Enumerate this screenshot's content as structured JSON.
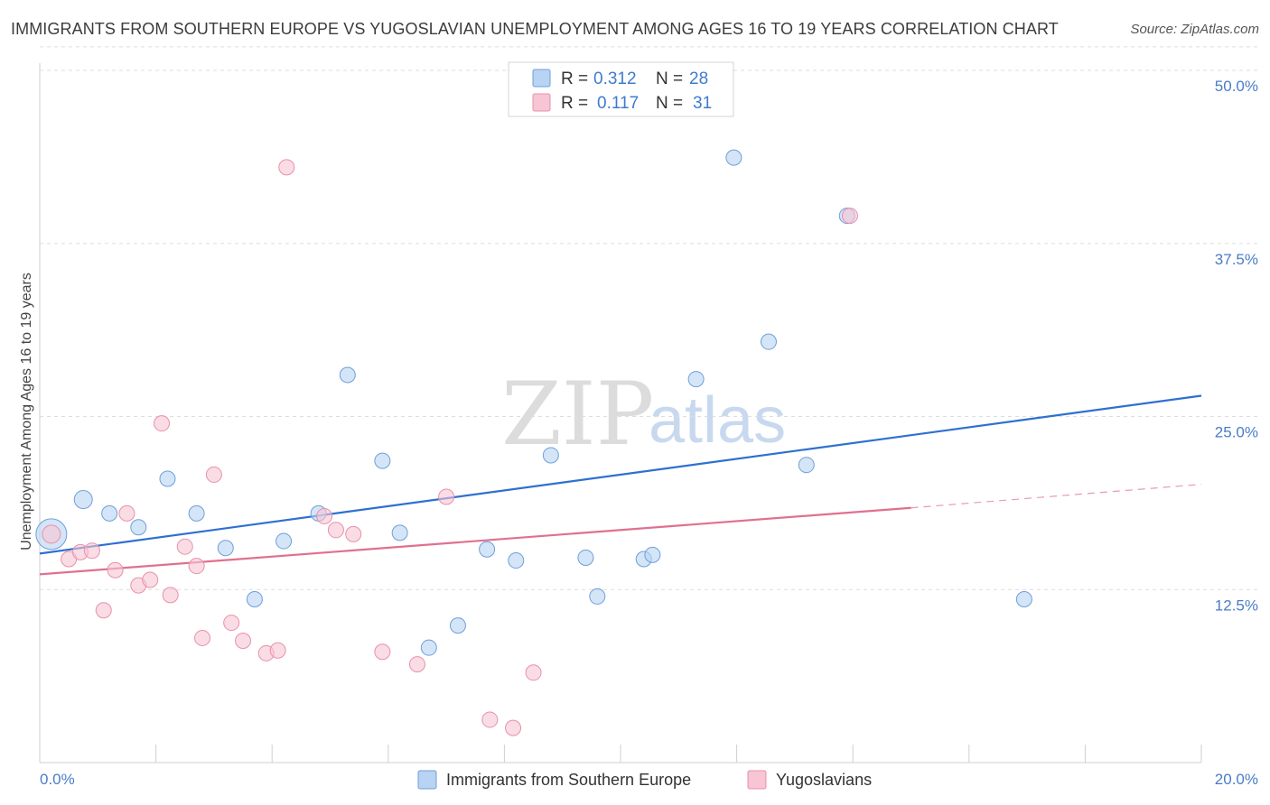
{
  "header": {
    "title": "IMMIGRANTS FROM SOUTHERN EUROPE VS YUGOSLAVIAN UNEMPLOYMENT AMONG AGES 16 TO 19 YEARS CORRELATION CHART",
    "source": "Source: ZipAtlas.com"
  },
  "watermark": {
    "zip": "ZIP",
    "atlas": "atlas"
  },
  "legend": {
    "series1": {
      "r_label": "R = ",
      "r_value": "0.312",
      "n_label": "N = ",
      "n_value": "28"
    },
    "series2": {
      "r_label": "R = ",
      "r_value": "0.117",
      "n_label": "N = ",
      "n_value": "31"
    }
  },
  "colors": {
    "blue_fill": "#b8d3f3",
    "blue_stroke": "#6f9fd8",
    "blue_line": "#2f6fd0",
    "pink_fill": "#f7c5d4",
    "pink_stroke": "#e890ac",
    "pink_line": "#e0708f",
    "axis_text": "#4a7cc9"
  },
  "chart_data": {
    "type": "scatter",
    "title": "IMMIGRANTS FROM SOUTHERN EUROPE VS YUGOSLAVIAN UNEMPLOYMENT AMONG AGES 16 TO 19 YEARS CORRELATION CHART",
    "xlabel": "",
    "ylabel": "Unemployment Among Ages 16 to 19 years",
    "xlim": [
      0,
      20
    ],
    "ylim": [
      0,
      52
    ],
    "x_tick_labels": [
      {
        "value": 0,
        "label": "0.0%"
      },
      {
        "value": 20,
        "label": "20.0%"
      }
    ],
    "y_tick_labels": [
      {
        "value": 12.5,
        "label": "12.5%"
      },
      {
        "value": 25,
        "label": "25.0%"
      },
      {
        "value": 37.5,
        "label": "37.5%"
      },
      {
        "value": 50,
        "label": "50.0%"
      }
    ],
    "series": [
      {
        "name": "Immigrants from Southern Europe",
        "color": "blue",
        "points": [
          [
            0.2,
            16.5,
            3
          ],
          [
            0.75,
            19,
            2
          ],
          [
            1.2,
            18,
            1
          ],
          [
            1.7,
            17,
            1
          ],
          [
            2.2,
            20.5,
            1
          ],
          [
            2.7,
            18,
            1
          ],
          [
            3.2,
            15.5,
            1
          ],
          [
            3.7,
            11.8,
            1
          ],
          [
            4.2,
            16,
            1
          ],
          [
            4.8,
            18,
            1
          ],
          [
            5.3,
            28,
            1
          ],
          [
            5.9,
            21.8,
            1
          ],
          [
            6.2,
            16.6,
            1
          ],
          [
            6.7,
            8.3,
            1
          ],
          [
            7.2,
            9.9,
            1
          ],
          [
            7.7,
            15.4,
            1
          ],
          [
            8.2,
            14.6,
            1
          ],
          [
            8.8,
            22.2,
            1
          ],
          [
            9.4,
            14.8,
            1
          ],
          [
            9.6,
            12,
            1
          ],
          [
            10.4,
            14.7,
            1
          ],
          [
            10.55,
            15,
            1
          ],
          [
            11.3,
            27.7,
            1
          ],
          [
            11.95,
            43.7,
            1
          ],
          [
            12.55,
            30.4,
            1
          ],
          [
            13.2,
            21.5,
            1
          ],
          [
            13.9,
            39.5,
            1
          ],
          [
            16.95,
            11.8,
            1
          ]
        ],
        "trend": {
          "x": [
            0,
            20
          ],
          "y": [
            15.1,
            26.5
          ]
        }
      },
      {
        "name": "Yugoslavians",
        "color": "pink",
        "points": [
          [
            0.2,
            16.5,
            2
          ],
          [
            0.5,
            14.7,
            1
          ],
          [
            0.7,
            15.2,
            1
          ],
          [
            0.9,
            15.3,
            1
          ],
          [
            1.1,
            11,
            1
          ],
          [
            1.3,
            13.9,
            1
          ],
          [
            1.5,
            18,
            1
          ],
          [
            1.7,
            12.8,
            1
          ],
          [
            1.9,
            13.2,
            1
          ],
          [
            2.1,
            24.5,
            1
          ],
          [
            2.25,
            12.1,
            1
          ],
          [
            2.5,
            15.6,
            1
          ],
          [
            2.7,
            14.2,
            1
          ],
          [
            2.8,
            9,
            1
          ],
          [
            3.0,
            20.8,
            1
          ],
          [
            3.3,
            10.1,
            1
          ],
          [
            3.5,
            8.8,
            1
          ],
          [
            3.9,
            7.9,
            1
          ],
          [
            4.1,
            8.1,
            1
          ],
          [
            4.25,
            43,
            1
          ],
          [
            4.9,
            17.8,
            1
          ],
          [
            5.1,
            16.8,
            1
          ],
          [
            5.4,
            16.5,
            1
          ],
          [
            5.9,
            8,
            1
          ],
          [
            6.5,
            7.1,
            1
          ],
          [
            7.0,
            19.2,
            1
          ],
          [
            7.75,
            3.1,
            1
          ],
          [
            8.15,
            2.5,
            1
          ],
          [
            8.5,
            6.5,
            1
          ],
          [
            13.95,
            39.5,
            1
          ]
        ],
        "trend": {
          "x": [
            0,
            15
          ],
          "y": [
            13.6,
            18.4
          ]
        },
        "trend_dashed": {
          "x": [
            15,
            20
          ],
          "y": [
            18.4,
            20.1
          ]
        }
      }
    ],
    "bottom_legend": [
      "Immigrants from Southern Europe",
      "Yugoslavians"
    ]
  }
}
